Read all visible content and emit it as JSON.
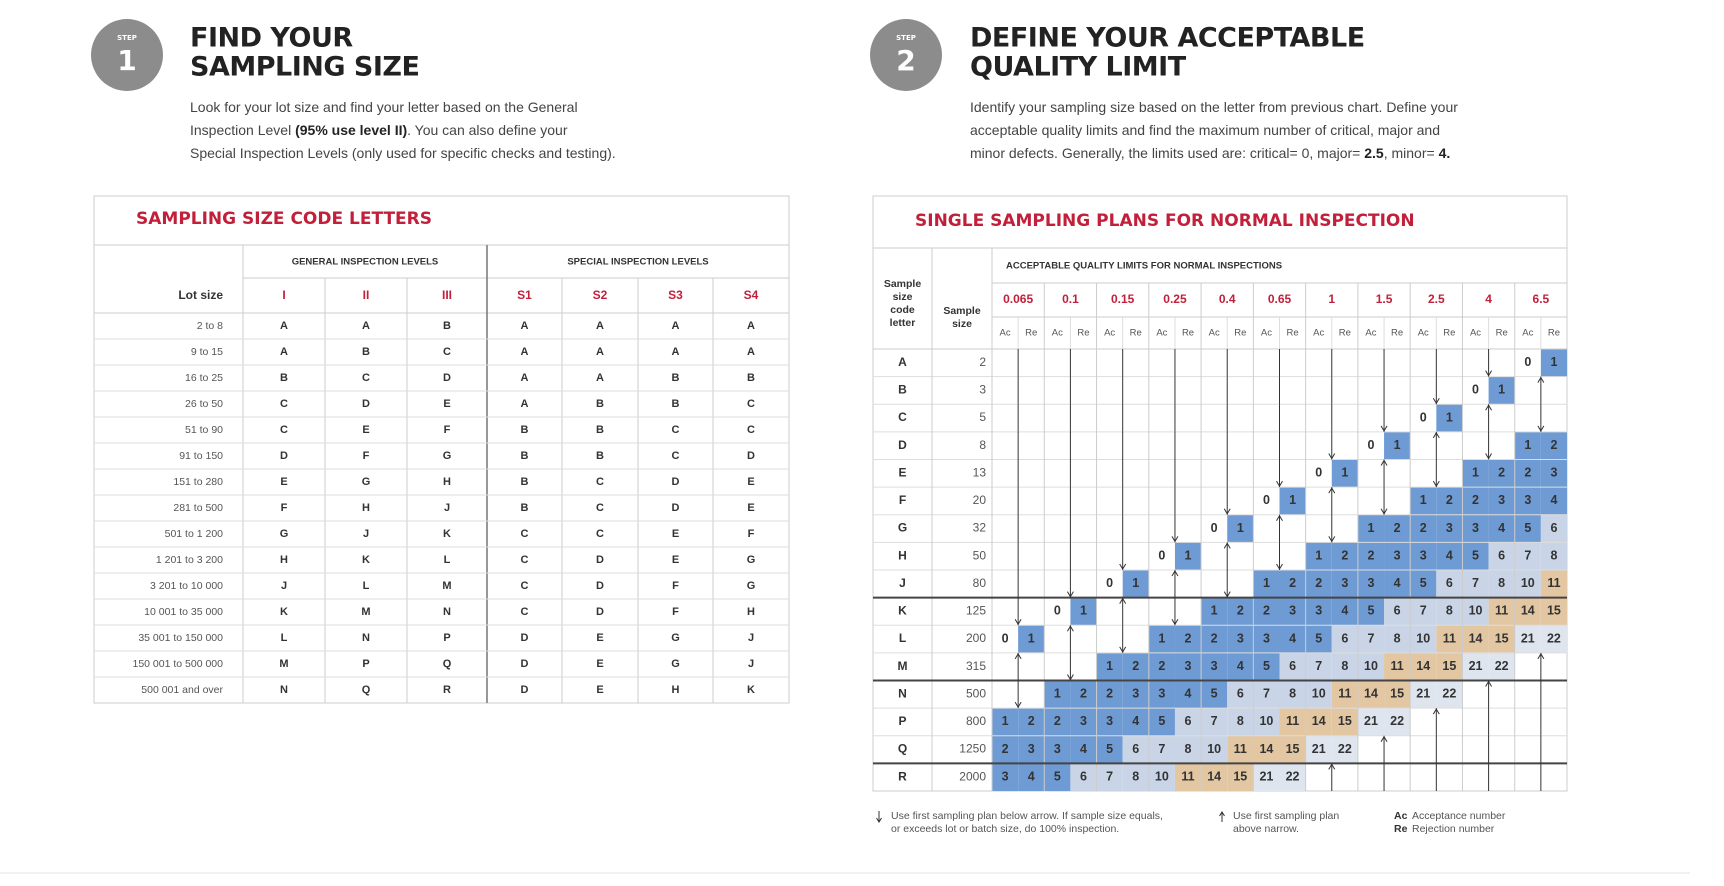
{
  "step1": {
    "badge": "STEP",
    "number": "1",
    "title": [
      "FIND YOUR",
      "SAMPLING SIZE"
    ],
    "description": [
      [
        {
          "text": "Look for your lot size and find your letter based on the General"
        }
      ],
      [
        {
          "text": "Inspection Level "
        },
        {
          "text": "(95% use level II)",
          "bold": true
        },
        {
          "text": ". You can also define your"
        }
      ],
      [
        {
          "text": "Special Inspection Levels (only used for specific checks and testing)."
        }
      ]
    ],
    "table": {
      "title": "SAMPLING SIZE CODE LETTERS",
      "groups": [
        "GENERAL INSPECTION LEVELS",
        "SPECIAL INSPECTION LEVELS"
      ],
      "lot_header": "Lot size",
      "columns": [
        "I",
        "II",
        "III",
        "S1",
        "S2",
        "S3",
        "S4"
      ],
      "rows": [
        {
          "lot": "2 to 8",
          "letters": [
            "A",
            "A",
            "B",
            "A",
            "A",
            "A",
            "A"
          ]
        },
        {
          "lot": "9 to 15",
          "letters": [
            "A",
            "B",
            "C",
            "A",
            "A",
            "A",
            "A"
          ]
        },
        {
          "lot": "16 to 25",
          "letters": [
            "B",
            "C",
            "D",
            "A",
            "A",
            "B",
            "B"
          ]
        },
        {
          "lot": "26 to 50",
          "letters": [
            "C",
            "D",
            "E",
            "A",
            "B",
            "B",
            "C"
          ]
        },
        {
          "lot": "51 to 90",
          "letters": [
            "C",
            "E",
            "F",
            "B",
            "B",
            "C",
            "C"
          ]
        },
        {
          "lot": "91 to 150",
          "letters": [
            "D",
            "F",
            "G",
            "B",
            "B",
            "C",
            "D"
          ]
        },
        {
          "lot": "151 to 280",
          "letters": [
            "E",
            "G",
            "H",
            "B",
            "C",
            "D",
            "E"
          ]
        },
        {
          "lot": "281 to 500",
          "letters": [
            "F",
            "H",
            "J",
            "B",
            "C",
            "D",
            "E"
          ]
        },
        {
          "lot": "501 to 1 200",
          "letters": [
            "G",
            "J",
            "K",
            "C",
            "C",
            "E",
            "F"
          ]
        },
        {
          "lot": "1 201 to 3 200",
          "letters": [
            "H",
            "K",
            "L",
            "C",
            "D",
            "E",
            "G"
          ]
        },
        {
          "lot": "3 201 to 10 000",
          "letters": [
            "J",
            "L",
            "M",
            "C",
            "D",
            "F",
            "G"
          ]
        },
        {
          "lot": "10 001 to 35 000",
          "letters": [
            "K",
            "M",
            "N",
            "C",
            "D",
            "F",
            "H"
          ]
        },
        {
          "lot": "35 001 to 150 000",
          "letters": [
            "L",
            "N",
            "P",
            "D",
            "E",
            "G",
            "J"
          ]
        },
        {
          "lot": "150 001 to 500 000",
          "letters": [
            "M",
            "P",
            "Q",
            "D",
            "E",
            "G",
            "J"
          ]
        },
        {
          "lot": "500 001 and over",
          "letters": [
            "N",
            "Q",
            "R",
            "D",
            "E",
            "H",
            "K"
          ]
        }
      ]
    }
  },
  "step2": {
    "badge": "STEP",
    "number": "2",
    "title": [
      "DEFINE YOUR ACCEPTABLE",
      "QUALITY LIMIT"
    ],
    "description": [
      [
        {
          "text": "Identify your sampling size based on the letter from previous chart. Define your"
        }
      ],
      [
        {
          "text": "acceptable quality limits and find the maximum number of critical, major and"
        }
      ],
      [
        {
          "text": "minor defects. Generally, the limits used are: critical= 0, major= "
        },
        {
          "text": "2.5",
          "bold": true
        },
        {
          "text": ", minor= "
        },
        {
          "text": "4.",
          "bold": true
        }
      ]
    ],
    "table": {
      "title": "SINGLE SAMPLING PLANS FOR NORMAL INSPECTION",
      "letter_header": [
        "Sample",
        "size",
        "code",
        "letter"
      ],
      "size_header": [
        "Sample",
        "size"
      ],
      "aql_header": "ACCEPTABLE QUALITY LIMITS FOR NORMAL INSPECTIONS",
      "aql": [
        "0.065",
        "0.1",
        "0.15",
        "0.25",
        "0.4",
        "0.65",
        "1",
        "1.5",
        "2.5",
        "4",
        "6.5"
      ],
      "sub": [
        "Ac",
        "Re"
      ],
      "rows": [
        {
          "letter": "A",
          "size": 2,
          "cells": [
            "down",
            "down",
            "down",
            "down",
            "down",
            "down",
            "down",
            "down",
            "down",
            "down",
            [
              0,
              1
            ]
          ]
        },
        {
          "letter": "B",
          "size": 3,
          "cells": [
            "down",
            "down",
            "down",
            "down",
            "down",
            "down",
            "down",
            "down",
            "down",
            [
              0,
              1
            ],
            "up"
          ]
        },
        {
          "letter": "C",
          "size": 5,
          "cells": [
            "down",
            "down",
            "down",
            "down",
            "down",
            "down",
            "down",
            "down",
            [
              0,
              1
            ],
            "up",
            "down"
          ]
        },
        {
          "letter": "D",
          "size": 8,
          "cells": [
            "down",
            "down",
            "down",
            "down",
            "down",
            "down",
            "down",
            [
              0,
              1
            ],
            "up",
            "down",
            [
              1,
              2
            ]
          ]
        },
        {
          "letter": "E",
          "size": 13,
          "cells": [
            "down",
            "down",
            "down",
            "down",
            "down",
            "down",
            [
              0,
              1
            ],
            "up",
            "down",
            [
              1,
              2
            ],
            [
              2,
              3
            ]
          ]
        },
        {
          "letter": "F",
          "size": 20,
          "cells": [
            "down",
            "down",
            "down",
            "down",
            "down",
            [
              0,
              1
            ],
            "up",
            "down",
            [
              1,
              2
            ],
            [
              2,
              3
            ],
            [
              3,
              4
            ]
          ]
        },
        {
          "letter": "G",
          "size": 32,
          "cells": [
            "down",
            "down",
            "down",
            "down",
            [
              0,
              1
            ],
            "up",
            "down",
            [
              1,
              2
            ],
            [
              2,
              3
            ],
            [
              3,
              4
            ],
            [
              5,
              6
            ]
          ]
        },
        {
          "letter": "H",
          "size": 50,
          "cells": [
            "down",
            "down",
            "down",
            [
              0,
              1
            ],
            "up",
            "down",
            [
              1,
              2
            ],
            [
              2,
              3
            ],
            [
              3,
              4
            ],
            [
              5,
              6
            ],
            [
              7,
              8
            ]
          ]
        },
        {
          "letter": "J",
          "size": 80,
          "cells": [
            "down",
            "down",
            [
              0,
              1
            ],
            "up",
            "down",
            [
              1,
              2
            ],
            [
              2,
              3
            ],
            [
              3,
              4
            ],
            [
              5,
              6
            ],
            [
              7,
              8
            ],
            [
              10,
              11
            ]
          ]
        },
        {
          "letter": "K",
          "size": 125,
          "cells": [
            "down",
            [
              0,
              1
            ],
            "up",
            "down",
            [
              1,
              2
            ],
            [
              2,
              3
            ],
            [
              3,
              4
            ],
            [
              5,
              6
            ],
            [
              7,
              8
            ],
            [
              10,
              11
            ],
            [
              14,
              15
            ]
          ]
        },
        {
          "letter": "L",
          "size": 200,
          "cells": [
            [
              0,
              1
            ],
            "up",
            "down",
            [
              1,
              2
            ],
            [
              2,
              3
            ],
            [
              3,
              4
            ],
            [
              5,
              6
            ],
            [
              7,
              8
            ],
            [
              10,
              11
            ],
            [
              14,
              15
            ],
            [
              21,
              22
            ]
          ]
        },
        {
          "letter": "M",
          "size": 315,
          "cells": [
            "up",
            "down",
            [
              1,
              2
            ],
            [
              2,
              3
            ],
            [
              3,
              4
            ],
            [
              5,
              6
            ],
            [
              7,
              8
            ],
            [
              10,
              11
            ],
            [
              14,
              15
            ],
            [
              21,
              22
            ],
            "up"
          ]
        },
        {
          "letter": "N",
          "size": 500,
          "cells": [
            "down",
            [
              1,
              2
            ],
            [
              2,
              3
            ],
            [
              3,
              4
            ],
            [
              5,
              6
            ],
            [
              7,
              8
            ],
            [
              10,
              11
            ],
            [
              14,
              15
            ],
            [
              21,
              22
            ],
            "up",
            "up"
          ]
        },
        {
          "letter": "P",
          "size": 800,
          "cells": [
            [
              1,
              2
            ],
            [
              2,
              3
            ],
            [
              3,
              4
            ],
            [
              5,
              6
            ],
            [
              7,
              8
            ],
            [
              10,
              11
            ],
            [
              14,
              15
            ],
            [
              21,
              22
            ],
            "up",
            "up",
            "up"
          ]
        },
        {
          "letter": "Q",
          "size": 1250,
          "cells": [
            [
              2,
              3
            ],
            [
              3,
              4
            ],
            [
              5,
              6
            ],
            [
              7,
              8
            ],
            [
              10,
              11
            ],
            [
              14,
              15
            ],
            [
              21,
              22
            ],
            "up",
            "up",
            "up",
            "up"
          ]
        },
        {
          "letter": "R",
          "size": 2000,
          "cells": [
            [
              3,
              4
            ],
            [
              5,
              6
            ],
            [
              7,
              8
            ],
            [
              10,
              11
            ],
            [
              14,
              15
            ],
            [
              21,
              22
            ],
            "up",
            "up",
            "up",
            "up",
            "up"
          ]
        }
      ]
    },
    "legend": {
      "down": [
        "Use first sampling plan below arrow. If sample size equals,",
        "or exceeds lot or batch size, do 100% inspection."
      ],
      "up": [
        "Use first sampling plan",
        "above narrow."
      ],
      "abbreviations": [
        {
          "abbr": "Ac",
          "text": "Acceptance number"
        },
        {
          "abbr": "Re",
          "text": "Rejection number"
        }
      ]
    }
  }
}
